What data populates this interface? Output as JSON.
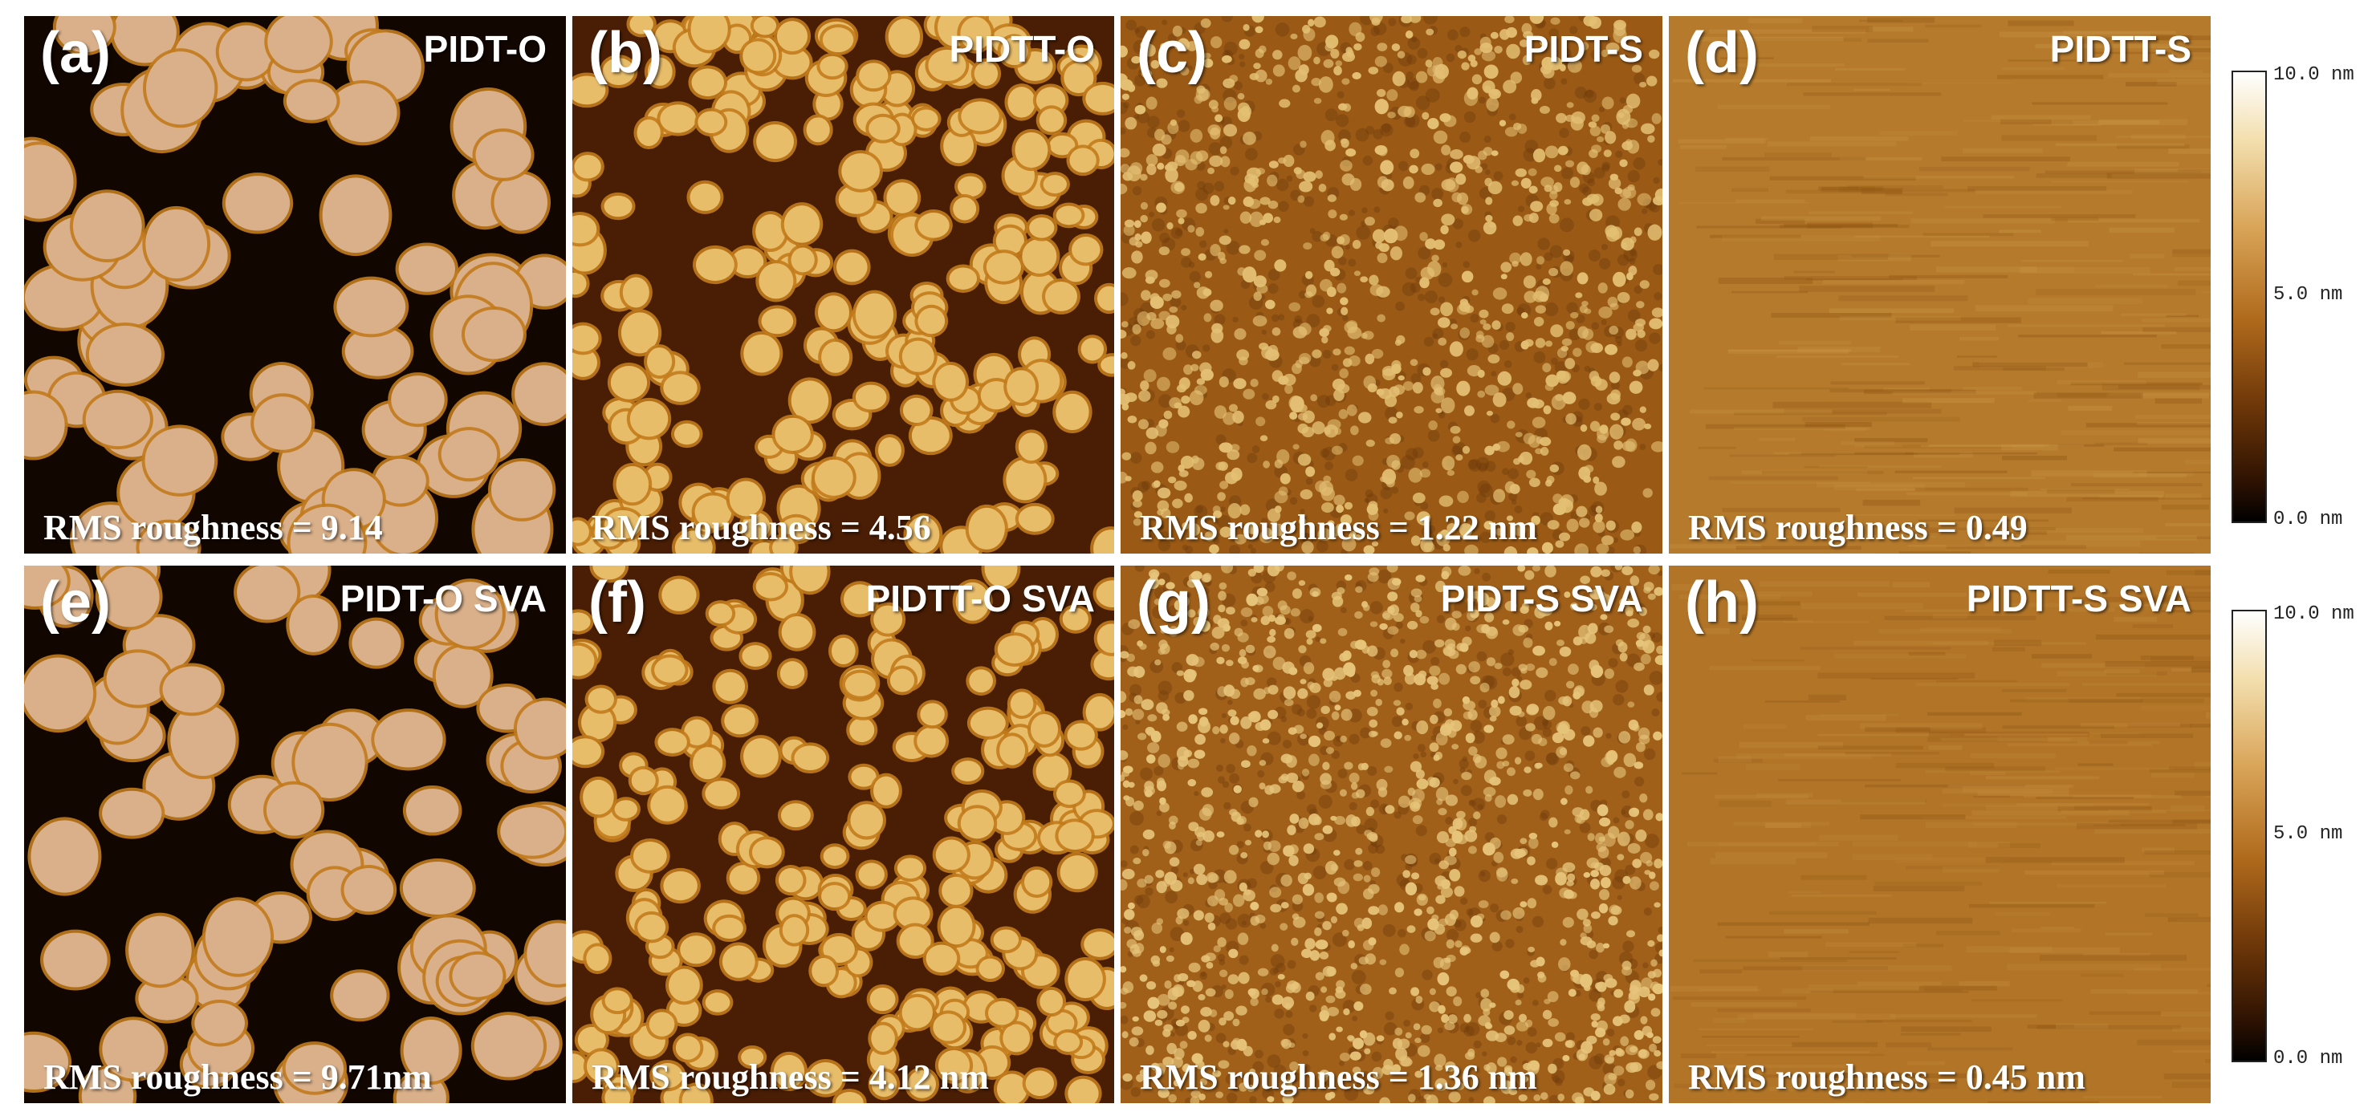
{
  "panels": [
    {
      "label": "(a)",
      "name": "PIDT-O",
      "rms": "RMS roughness = 9.14",
      "colors": {
        "base": "#120601",
        "blob": "#d9b08a"
      }
    },
    {
      "label": "(b)",
      "name": "PIDTT-O",
      "rms": "RMS roughness = 4.56",
      "colors": {
        "base": "#4a1e05",
        "blob": "#e8bd6a"
      }
    },
    {
      "label": "(c)",
      "name": "PIDT-S",
      "rms": "RMS roughness = 1.22 nm",
      "colors": {
        "base": "#9a5a15",
        "blob": "#e3bf73"
      }
    },
    {
      "label": "(d)",
      "name": "PIDTT-S",
      "rms": "RMS roughness = 0.49",
      "colors": {
        "base": "#b57a2c",
        "blob": "#c99545"
      }
    },
    {
      "label": "(e)",
      "name": "PIDT-O SVA",
      "rms": "RMS roughness = 9.71nm",
      "colors": {
        "base": "#120601",
        "blob": "#d9b08a"
      }
    },
    {
      "label": "(f)",
      "name": "PIDTT-O SVA",
      "rms": "RMS roughness = 4.12 nm",
      "colors": {
        "base": "#4a1e05",
        "blob": "#e8bd6a"
      }
    },
    {
      "label": "(g)",
      "name": "PIDT-S SVA",
      "rms": "RMS roughness = 1.36 nm",
      "colors": {
        "base": "#a0601a",
        "blob": "#e6c47a"
      }
    },
    {
      "label": "(h)",
      "name": "PIDTT-S SVA",
      "rms": "RMS roughness = 0.45 nm",
      "colors": {
        "base": "#b27528",
        "blob": "#c48b3c"
      }
    }
  ],
  "scale_bars": [
    {
      "top_label": "10.0 nm",
      "mid_label": "5.0 nm",
      "bottom_label": "0.0 nm"
    },
    {
      "top_label": "10.0 nm",
      "mid_label": "5.0 nm",
      "bottom_label": "0.0 nm"
    }
  ]
}
